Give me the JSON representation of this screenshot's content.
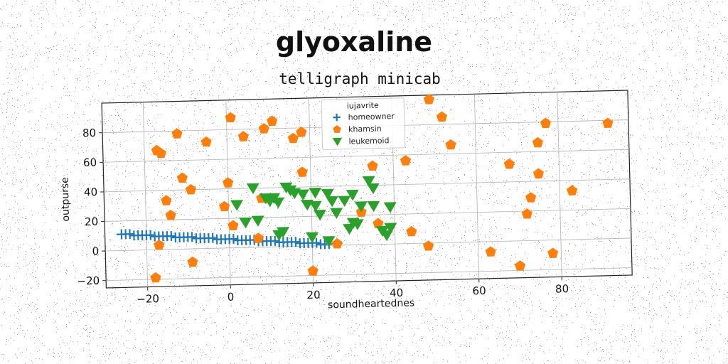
{
  "chart_data": {
    "type": "scatter",
    "title": "glyoxaline",
    "subtitle": "telligraph minicab",
    "xlabel": "soundheartednes",
    "ylabel": "outpurse",
    "xlim": [
      -30,
      97
    ],
    "ylim": [
      -25,
      100
    ],
    "xticks": [
      -20,
      0,
      20,
      40,
      60,
      80
    ],
    "yticks": [
      -20,
      0,
      20,
      40,
      60,
      80
    ],
    "grid": true,
    "legend": {
      "title": "iujavrite",
      "placement": "top-center"
    },
    "series": [
      {
        "name": "homeowner",
        "marker": "plus",
        "color": "#1f77b4",
        "points": [
          [
            -26,
            11
          ],
          [
            -25,
            11
          ],
          [
            -24,
            11
          ],
          [
            -23,
            10
          ],
          [
            -22,
            10
          ],
          [
            -21,
            10
          ],
          [
            -20,
            10
          ],
          [
            -19,
            10
          ],
          [
            -18,
            9
          ],
          [
            -17,
            9
          ],
          [
            -16,
            9
          ],
          [
            -15,
            9
          ],
          [
            -14,
            9
          ],
          [
            -13,
            8
          ],
          [
            -12,
            8
          ],
          [
            -11,
            8
          ],
          [
            -10,
            8
          ],
          [
            -9,
            8
          ],
          [
            -8,
            7
          ],
          [
            -7,
            7
          ],
          [
            -6,
            7
          ],
          [
            -5,
            7
          ],
          [
            -4,
            7
          ],
          [
            -3,
            6
          ],
          [
            -2,
            6
          ],
          [
            -1,
            6
          ],
          [
            0,
            6
          ],
          [
            1,
            6
          ],
          [
            2,
            5
          ],
          [
            3,
            5
          ],
          [
            4,
            5
          ],
          [
            5,
            5
          ],
          [
            6,
            5
          ],
          [
            7,
            4
          ],
          [
            8,
            4
          ],
          [
            9,
            4
          ],
          [
            10,
            4
          ],
          [
            11,
            4
          ],
          [
            12,
            3
          ],
          [
            13,
            3
          ],
          [
            14,
            3
          ],
          [
            15,
            3
          ],
          [
            16,
            3
          ],
          [
            17,
            2
          ],
          [
            18,
            2
          ],
          [
            19,
            2
          ],
          [
            20,
            2
          ],
          [
            21,
            2
          ],
          [
            22,
            1
          ],
          [
            23,
            1
          ],
          [
            24,
            1
          ]
        ]
      },
      {
        "name": "khamsin",
        "marker": "pentagon",
        "color": "#ff7f0e",
        "points": [
          [
            -18,
            -19
          ],
          [
            -17,
            3
          ],
          [
            -17,
            67
          ],
          [
            -16,
            65
          ],
          [
            -15,
            33
          ],
          [
            -14,
            23
          ],
          [
            -12,
            78
          ],
          [
            -11,
            48
          ],
          [
            -9,
            40
          ],
          [
            -9,
            -9
          ],
          [
            -5,
            72
          ],
          [
            -1,
            28
          ],
          [
            0,
            44
          ],
          [
            1,
            15
          ],
          [
            1,
            88
          ],
          [
            4,
            75
          ],
          [
            7,
            6
          ],
          [
            8,
            33
          ],
          [
            9,
            80
          ],
          [
            11,
            85
          ],
          [
            16,
            73
          ],
          [
            18,
            77
          ],
          [
            18,
            50
          ],
          [
            20,
            -17
          ],
          [
            26,
            1
          ],
          [
            32,
            22
          ],
          [
            35,
            53
          ],
          [
            36,
            14
          ],
          [
            43,
            56
          ],
          [
            44,
            8
          ],
          [
            48,
            -2
          ],
          [
            49,
            97
          ],
          [
            52,
            85
          ],
          [
            54,
            66
          ],
          [
            63,
            -7
          ],
          [
            68,
            52
          ],
          [
            70,
            -17
          ],
          [
            72,
            18
          ],
          [
            73,
            29
          ],
          [
            75,
            66
          ],
          [
            75,
            45
          ],
          [
            77,
            79
          ],
          [
            78,
            -9
          ],
          [
            83,
            33
          ],
          [
            92,
            78
          ]
        ]
      },
      {
        "name": "leukemoid",
        "marker": "triangle-down",
        "color": "#2ca02c",
        "points": [
          [
            2,
            29
          ],
          [
            4,
            17
          ],
          [
            6,
            40
          ],
          [
            7,
            18
          ],
          [
            9,
            33
          ],
          [
            10,
            31
          ],
          [
            11,
            33
          ],
          [
            12,
            30
          ],
          [
            12,
            8
          ],
          [
            13,
            10
          ],
          [
            14,
            40
          ],
          [
            15,
            38
          ],
          [
            16,
            36
          ],
          [
            18,
            35
          ],
          [
            19,
            28
          ],
          [
            20,
            6
          ],
          [
            21,
            36
          ],
          [
            21,
            27
          ],
          [
            22,
            21
          ],
          [
            24,
            3
          ],
          [
            24,
            35
          ],
          [
            25,
            30
          ],
          [
            26,
            22
          ],
          [
            28,
            30
          ],
          [
            29,
            11
          ],
          [
            30,
            15
          ],
          [
            30,
            34
          ],
          [
            31,
            14
          ],
          [
            32,
            26
          ],
          [
            34,
            43
          ],
          [
            35,
            38
          ],
          [
            35,
            26
          ],
          [
            37,
            9
          ],
          [
            38,
            6
          ],
          [
            39,
            11
          ],
          [
            39,
            25
          ]
        ]
      }
    ]
  }
}
